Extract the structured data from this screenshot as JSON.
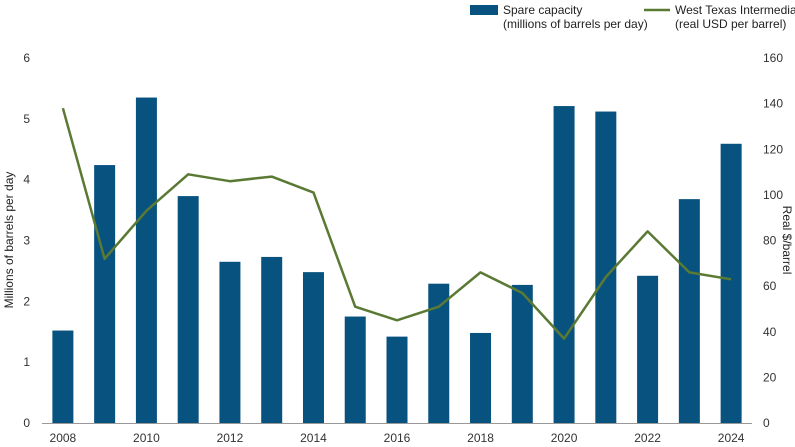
{
  "chart_data": {
    "type": "bar",
    "categories": [
      "2008",
      "2009",
      "2010",
      "2011",
      "2012",
      "2013",
      "2014",
      "2015",
      "2016",
      "2017",
      "2018",
      "2019",
      "2020",
      "2021",
      "2022",
      "2023",
      "2024"
    ],
    "x_tick_labels": [
      "2008",
      "2010",
      "2012",
      "2014",
      "2016",
      "2018",
      "2020",
      "2022",
      "2024"
    ],
    "series": [
      {
        "name": "Spare capacity (millions of barrels per day)",
        "legend_lines": [
          "Spare capacity",
          "(millions of barrels per day)"
        ],
        "type": "bar",
        "axis": "left",
        "color": "#08527f",
        "values": [
          1.52,
          4.24,
          5.35,
          3.73,
          2.65,
          2.73,
          2.48,
          1.75,
          1.42,
          2.29,
          1.48,
          2.27,
          5.21,
          5.12,
          2.42,
          3.68,
          4.59
        ]
      },
      {
        "name": "West Texas Intermediate (real USD per barrel)",
        "legend_lines": [
          "West Texas Intermediate",
          "(real USD per barrel)"
        ],
        "type": "line",
        "axis": "right",
        "color": "#5a7a34",
        "values": [
          138,
          72,
          93,
          109,
          106,
          108,
          101,
          51,
          45,
          51,
          66,
          57,
          37,
          64,
          84,
          66,
          63
        ]
      }
    ],
    "y_left": {
      "label": "Millions of barrels per day",
      "lim": [
        0,
        6
      ],
      "ticks": [
        "0",
        "1",
        "2",
        "3",
        "4",
        "5",
        "6"
      ]
    },
    "y_right": {
      "label": "Real $/barrel",
      "lim": [
        0,
        160
      ],
      "ticks": [
        "0",
        "20",
        "40",
        "60",
        "80",
        "100",
        "120",
        "140",
        "160"
      ]
    },
    "grid": false,
    "legend_position": "top-right"
  }
}
